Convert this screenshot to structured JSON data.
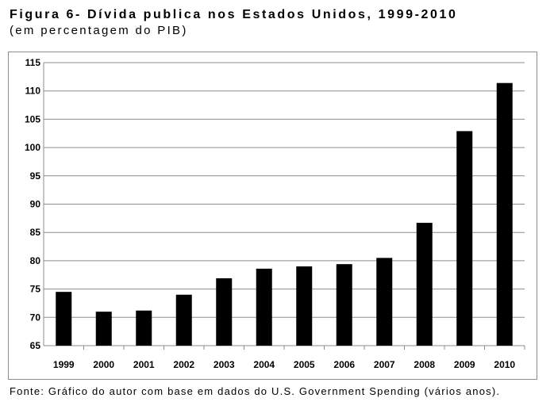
{
  "figure": {
    "title": "Figura 6- Dívida publica nos Estados Unidos, 1999-2010",
    "subtitle": "(em percentagem do PIB)",
    "source": "Fonte: Gráfico do autor com base em dados do U.S. Government Spending (vários anos)."
  },
  "colors": {
    "bar": "#000000",
    "grid": "#8c8c8c",
    "frame": "#8c8c8c"
  },
  "chart_data": {
    "type": "bar",
    "title": "",
    "xlabel": "",
    "ylabel": "",
    "categories": [
      "1999",
      "2000",
      "2001",
      "2002",
      "2003",
      "2004",
      "2005",
      "2006",
      "2007",
      "2008",
      "2009",
      "2010"
    ],
    "series": [
      {
        "values": [
          74.5,
          71.0,
          71.2,
          74.0,
          76.9,
          78.6,
          79.0,
          79.4,
          80.5,
          86.7,
          102.9,
          111.4
        ]
      }
    ],
    "ylim": [
      65,
      115
    ],
    "yticks": [
      65,
      70,
      75,
      80,
      85,
      90,
      95,
      100,
      105,
      110,
      115
    ],
    "grid": true,
    "legend": "none"
  }
}
